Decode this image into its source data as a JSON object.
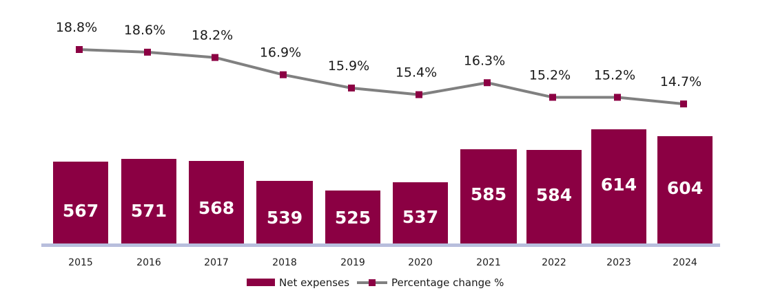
{
  "chart_data": {
    "type": "bar",
    "categories": [
      "2015",
      "2016",
      "2017",
      "2018",
      "2019",
      "2020",
      "2021",
      "2022",
      "2023",
      "2024"
    ],
    "series": [
      {
        "name": "Net expenses",
        "type": "bar",
        "values": [
          567,
          571,
          568,
          539,
          525,
          537,
          585,
          584,
          614,
          604
        ],
        "labels": [
          "567",
          "571",
          "568",
          "539",
          "525",
          "537",
          "585",
          "584",
          "614",
          "604"
        ],
        "color": "#8b0043"
      },
      {
        "name": "Percentage change %",
        "type": "line",
        "values": [
          18.8,
          18.6,
          18.2,
          16.9,
          15.9,
          15.4,
          16.3,
          15.2,
          15.2,
          14.7
        ],
        "labels": [
          "18.8%",
          "18.6%",
          "18.2%",
          "16.9%",
          "15.9%",
          "15.4%",
          "16.3%",
          "15.2%",
          "15.2%",
          "14.7%"
        ],
        "color": "#808080",
        "marker_color": "#8b0043"
      }
    ],
    "axis_color": "#b8bedd",
    "legend_position": "bottom",
    "grid": false
  }
}
